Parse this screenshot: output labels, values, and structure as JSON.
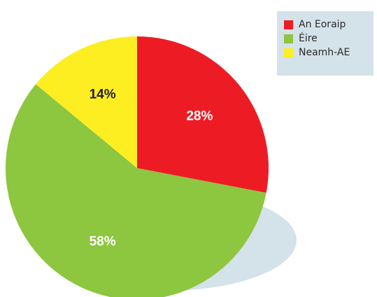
{
  "chart_data": {
    "type": "pie",
    "slices": [
      {
        "name": "An Eoraip",
        "value": 28,
        "label": "28%",
        "color": "#ed1c24",
        "label_color": "#ffffff"
      },
      {
        "name": "Éire",
        "value": 58,
        "label": "58%",
        "color": "#8dc63f",
        "label_color": "#ffffff"
      },
      {
        "name": "Neamh-AE",
        "value": 14,
        "label": "14%",
        "color": "#fcee21",
        "label_color": "#231f20"
      }
    ],
    "start_angle_deg": 0,
    "direction": "clockwise",
    "legend_position": "top-right",
    "shadow_color": "#d4e2ea"
  },
  "legend": {
    "items": [
      {
        "label": "An Eoraip",
        "color": "#ed1c24"
      },
      {
        "label": "Éire",
        "color": "#8dc63f"
      },
      {
        "label": "Neamh-AE",
        "color": "#fcee21"
      }
    ]
  }
}
